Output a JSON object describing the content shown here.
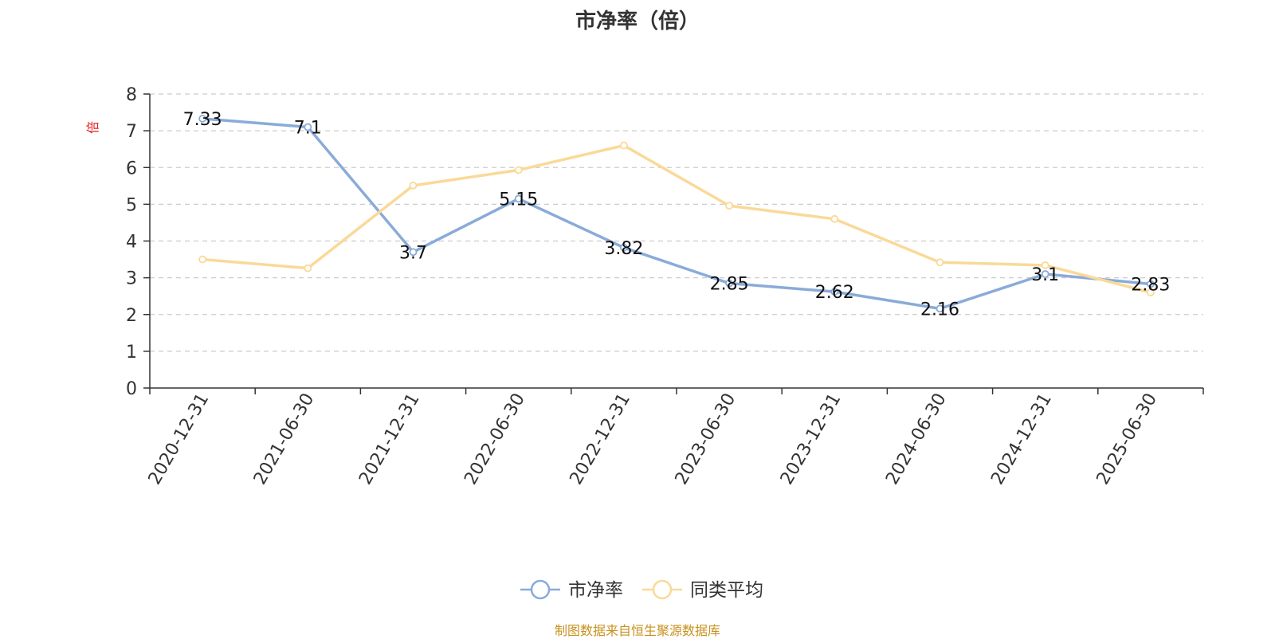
{
  "title": "市净率（倍）",
  "source_note": "制图数据来自恒生聚源数据库",
  "y_unit": "倍",
  "colors": {
    "series_pb": "#8aabd8",
    "series_avg": "#fad998",
    "axis": "#333333",
    "grid": "#cccccc",
    "unit_label": "#e31c1c",
    "source": "#c8911f"
  },
  "chart_data": {
    "type": "line",
    "title": "市净率（倍）",
    "ylabel": "倍",
    "xlabel": "",
    "ylim": [
      0,
      8
    ],
    "yticks": [
      0,
      1,
      2,
      3,
      4,
      5,
      6,
      7,
      8
    ],
    "grid": true,
    "legend_position": "bottom-center",
    "categories": [
      "2020-12-31",
      "2021-06-30",
      "2021-12-31",
      "2022-06-30",
      "2022-12-31",
      "2023-06-30",
      "2023-12-31",
      "2024-06-30",
      "2024-12-31",
      "2025-06-30"
    ],
    "series": [
      {
        "name": "市净率",
        "values": [
          7.33,
          7.1,
          3.7,
          5.15,
          3.82,
          2.85,
          2.62,
          2.16,
          3.1,
          2.83
        ],
        "labels": [
          "7.33",
          "7.1",
          "3.7",
          "5.15",
          "3.82",
          "2.85",
          "2.62",
          "2.16",
          "3.1",
          "2.83"
        ]
      },
      {
        "name": "同类平均",
        "values": [
          3.5,
          3.26,
          5.51,
          5.93,
          6.6,
          4.96,
          4.6,
          3.42,
          3.34,
          2.6
        ]
      }
    ]
  }
}
